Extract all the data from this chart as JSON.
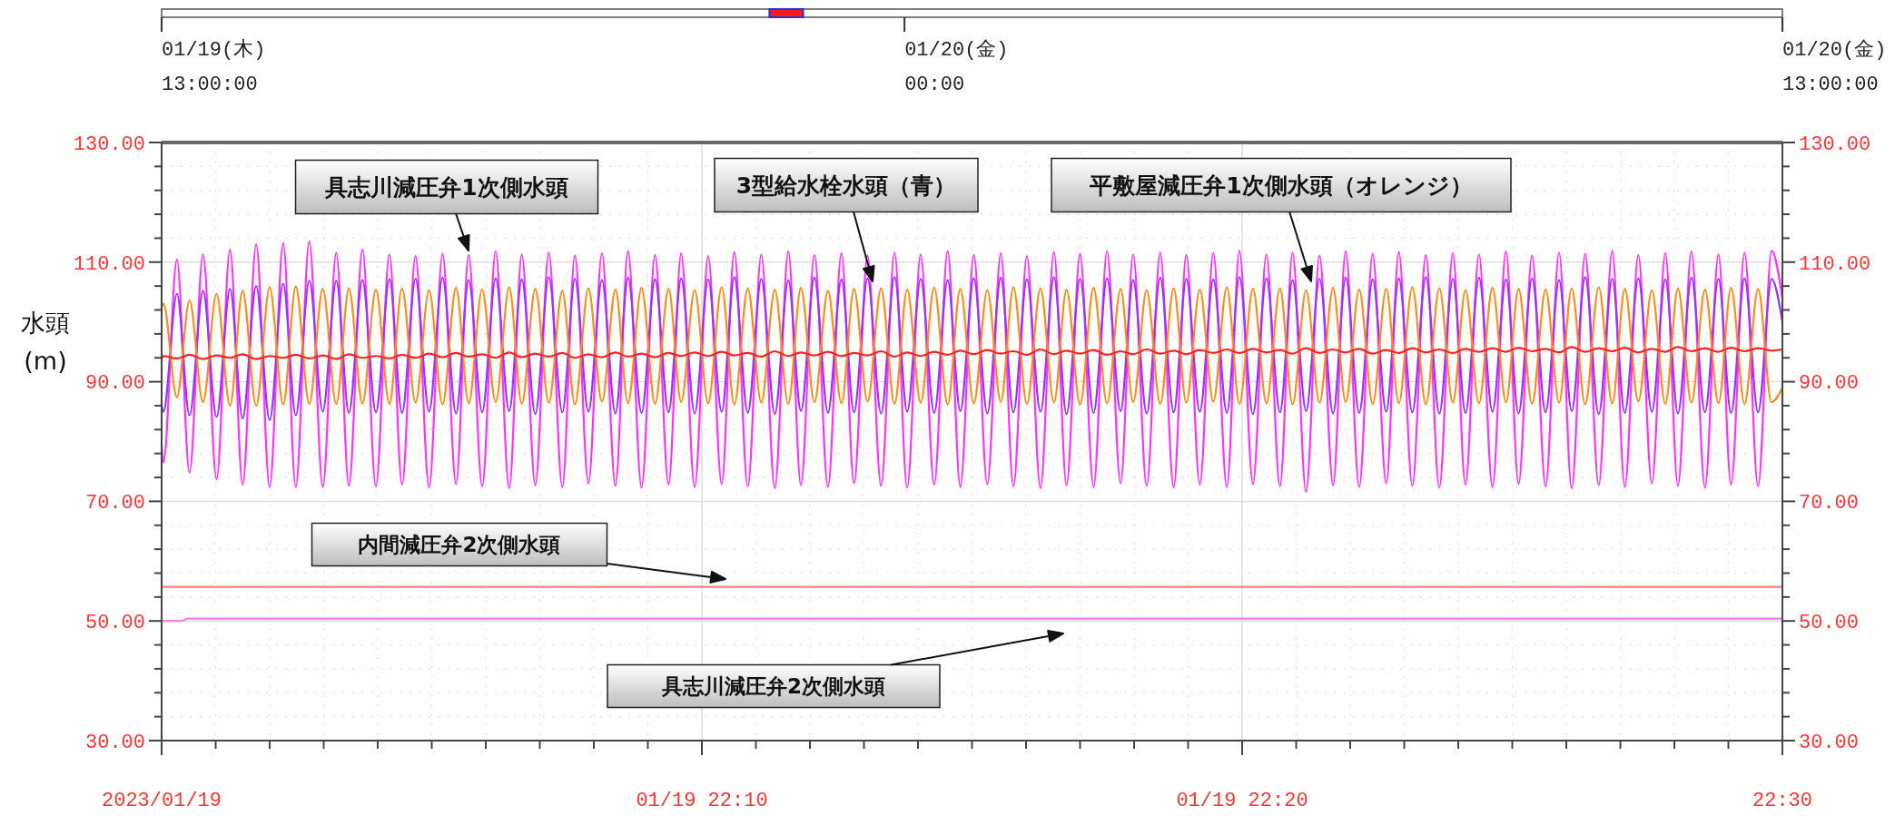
{
  "chart_data": {
    "type": "line",
    "ylabel": "水頭\n(m)",
    "xlim": [
      "2023-01-19T22:00",
      "2023-01-19T22:30"
    ],
    "xticks": [
      {
        "value": "2023-01-19T22:00",
        "label": "2023/01/19"
      },
      {
        "value": "2023-01-19T22:01",
        "label": null
      },
      {
        "value": "2023-01-19T22:02",
        "label": null
      },
      {
        "value": "2023-01-19T22:03",
        "label": null
      },
      {
        "value": "2023-01-19T22:04",
        "label": null
      },
      {
        "value": "2023-01-19T22:05",
        "label": null
      },
      {
        "value": "2023-01-19T22:06",
        "label": null
      },
      {
        "value": "2023-01-19T22:07",
        "label": null
      },
      {
        "value": "2023-01-19T22:08",
        "label": null
      },
      {
        "value": "2023-01-19T22:09",
        "label": null
      },
      {
        "value": "2023-01-19T22:10",
        "label": "01/19 22:10"
      },
      {
        "value": "2023-01-19T22:11",
        "label": null
      },
      {
        "value": "2023-01-19T22:12",
        "label": null
      },
      {
        "value": "2023-01-19T22:13",
        "label": null
      },
      {
        "value": "2023-01-19T22:14",
        "label": null
      },
      {
        "value": "2023-01-19T22:15",
        "label": null
      },
      {
        "value": "2023-01-19T22:16",
        "label": null
      },
      {
        "value": "2023-01-19T22:17",
        "label": null
      },
      {
        "value": "2023-01-19T22:18",
        "label": null
      },
      {
        "value": "2023-01-19T22:19",
        "label": null
      },
      {
        "value": "2023-01-19T22:20",
        "label": "01/19 22:20"
      },
      {
        "value": "2023-01-19T22:21",
        "label": null
      },
      {
        "value": "2023-01-19T22:22",
        "label": null
      },
      {
        "value": "2023-01-19T22:23",
        "label": null
      },
      {
        "value": "2023-01-19T22:24",
        "label": null
      },
      {
        "value": "2023-01-19T22:25",
        "label": null
      },
      {
        "value": "2023-01-19T22:26",
        "label": null
      },
      {
        "value": "2023-01-19T22:27",
        "label": null
      },
      {
        "value": "2023-01-19T22:28",
        "label": null
      },
      {
        "value": "2023-01-19T22:29",
        "label": null
      },
      {
        "value": "2023-01-19T22:30",
        "label": "22:30"
      }
    ],
    "ylim": [
      30,
      130
    ],
    "yticks": [
      {
        "value": 30,
        "label": "30.00"
      },
      {
        "value": 34,
        "label": null
      },
      {
        "value": 38,
        "label": null
      },
      {
        "value": 42,
        "label": null
      },
      {
        "value": 46,
        "label": null
      },
      {
        "value": 50,
        "label": "50.00"
      },
      {
        "value": 54,
        "label": null
      },
      {
        "value": 58,
        "label": null
      },
      {
        "value": 62,
        "label": null
      },
      {
        "value": 66,
        "label": null
      },
      {
        "value": 70,
        "label": "70.00"
      },
      {
        "value": 74,
        "label": null
      },
      {
        "value": 78,
        "label": null
      },
      {
        "value": 82,
        "label": null
      },
      {
        "value": 86,
        "label": null
      },
      {
        "value": 90,
        "label": "90.00"
      },
      {
        "value": 94,
        "label": null
      },
      {
        "value": 98,
        "label": null
      },
      {
        "value": 102,
        "label": null
      },
      {
        "value": 106,
        "label": null
      },
      {
        "value": 110,
        "label": "110.00"
      },
      {
        "value": 114,
        "label": null
      },
      {
        "value": 118,
        "label": null
      },
      {
        "value": 122,
        "label": null
      },
      {
        "value": 126,
        "label": null
      },
      {
        "value": 130,
        "label": "130.00"
      }
    ],
    "y2lim": [
      30,
      130
    ],
    "y2ticks": [
      {
        "value": 30,
        "label": "30.00"
      },
      {
        "value": 34,
        "label": null
      },
      {
        "value": 38,
        "label": null
      },
      {
        "value": 42,
        "label": null
      },
      {
        "value": 46,
        "label": null
      },
      {
        "value": 50,
        "label": "50.00"
      },
      {
        "value": 54,
        "label": null
      },
      {
        "value": 58,
        "label": null
      },
      {
        "value": 62,
        "label": null
      },
      {
        "value": 66,
        "label": null
      },
      {
        "value": 70,
        "label": "70.00"
      },
      {
        "value": 74,
        "label": null
      },
      {
        "value": 78,
        "label": null
      },
      {
        "value": 82,
        "label": null
      },
      {
        "value": 86,
        "label": null
      },
      {
        "value": 90,
        "label": "90.00"
      },
      {
        "value": 94,
        "label": null
      },
      {
        "value": 98,
        "label": null
      },
      {
        "value": 102,
        "label": null
      },
      {
        "value": 106,
        "label": null
      },
      {
        "value": 110,
        "label": "110.00"
      },
      {
        "value": 114,
        "label": null
      },
      {
        "value": 118,
        "label": null
      },
      {
        "value": 122,
        "label": null
      },
      {
        "value": 126,
        "label": null
      },
      {
        "value": 130,
        "label": "130.00"
      }
    ],
    "x2lim": [
      "2023-01-19T13:00",
      "2023-01-20T13:00"
    ],
    "x2ticks": [
      {
        "value": "2023-01-19T13:00",
        "label": "01/19(木)\n13:00:00"
      },
      {
        "value": "2023-01-20T00:00",
        "label": "01/20(金)\n00:00"
      },
      {
        "value": "2023-01-20T13:00",
        "label": "01/20(金)\n13:00:00"
      }
    ],
    "grid": true,
    "line_style": "solid",
    "x": [
      "2023-01-19T22:00:00",
      "2023-01-19T22:00:02",
      "2023-01-19T22:00:17",
      "2023-01-19T22:00:31",
      "2023-01-19T22:00:46",
      "2023-01-19T22:01:01",
      "2023-01-19T22:01:16",
      "2023-01-19T22:01:30",
      "2023-01-19T22:01:45",
      "2023-01-19T22:02:00",
      "2023-01-19T22:02:15",
      "2023-01-19T22:02:29",
      "2023-01-19T22:02:44",
      "2023-01-19T22:02:59",
      "2023-01-19T22:03:14",
      "2023-01-19T22:03:28",
      "2023-01-19T22:03:43",
      "2023-01-19T22:03:58",
      "2023-01-19T22:04:13",
      "2023-01-19T22:04:27",
      "2023-01-19T22:04:42",
      "2023-01-19T22:04:57",
      "2023-01-19T22:05:12",
      "2023-01-19T22:05:27",
      "2023-01-19T22:05:41",
      "2023-01-19T22:05:56",
      "2023-01-19T22:06:11",
      "2023-01-19T22:06:26",
      "2023-01-19T22:06:40",
      "2023-01-19T22:06:55",
      "2023-01-19T22:07:10",
      "2023-01-19T22:07:25",
      "2023-01-19T22:07:39",
      "2023-01-19T22:07:54",
      "2023-01-19T22:08:09",
      "2023-01-19T22:08:24",
      "2023-01-19T22:08:38",
      "2023-01-19T22:08:53",
      "2023-01-19T22:09:08",
      "2023-01-19T22:09:23",
      "2023-01-19T22:09:37",
      "2023-01-19T22:09:52",
      "2023-01-19T22:10:07",
      "2023-01-19T22:10:22",
      "2023-01-19T22:10:36",
      "2023-01-19T22:10:51",
      "2023-01-19T22:11:06",
      "2023-01-19T22:11:21",
      "2023-01-19T22:11:36",
      "2023-01-19T22:11:50",
      "2023-01-19T22:12:05",
      "2023-01-19T22:12:20",
      "2023-01-19T22:12:35",
      "2023-01-19T22:12:49",
      "2023-01-19T22:13:04",
      "2023-01-19T22:13:19",
      "2023-01-19T22:13:34",
      "2023-01-19T22:13:48",
      "2023-01-19T22:14:03",
      "2023-01-19T22:14:18",
      "2023-01-19T22:14:33",
      "2023-01-19T22:14:47",
      "2023-01-19T22:15:02",
      "2023-01-19T22:15:17",
      "2023-01-19T22:15:32",
      "2023-01-19T22:15:46",
      "2023-01-19T22:16:01",
      "2023-01-19T22:16:16",
      "2023-01-19T22:16:31",
      "2023-01-19T22:16:45",
      "2023-01-19T22:17:00",
      "2023-01-19T22:17:15",
      "2023-01-19T22:17:30",
      "2023-01-19T22:17:45",
      "2023-01-19T22:17:59",
      "2023-01-19T22:18:14",
      "2023-01-19T22:18:29",
      "2023-01-19T22:18:44",
      "2023-01-19T22:18:58",
      "2023-01-19T22:19:13",
      "2023-01-19T22:19:28",
      "2023-01-19T22:19:43",
      "2023-01-19T22:19:57",
      "2023-01-19T22:20:12",
      "2023-01-19T22:20:27",
      "2023-01-19T22:20:42",
      "2023-01-19T22:20:56",
      "2023-01-19T22:21:11",
      "2023-01-19T22:21:26",
      "2023-01-19T22:21:41",
      "2023-01-19T22:21:55",
      "2023-01-19T22:22:10",
      "2023-01-19T22:22:25",
      "2023-01-19T22:22:40",
      "2023-01-19T22:22:54",
      "2023-01-19T22:23:09",
      "2023-01-19T22:23:24",
      "2023-01-19T22:23:39",
      "2023-01-19T22:23:54",
      "2023-01-19T22:24:08",
      "2023-01-19T22:24:23",
      "2023-01-19T22:24:38",
      "2023-01-19T22:24:53",
      "2023-01-19T22:25:07",
      "2023-01-19T22:25:22",
      "2023-01-19T22:25:37",
      "2023-01-19T22:25:52",
      "2023-01-19T22:26:06",
      "2023-01-19T22:26:21",
      "2023-01-19T22:26:36",
      "2023-01-19T22:26:51",
      "2023-01-19T22:27:05",
      "2023-01-19T22:27:20",
      "2023-01-19T22:27:35",
      "2023-01-19T22:27:50",
      "2023-01-19T22:28:04",
      "2023-01-19T22:28:19",
      "2023-01-19T22:28:34",
      "2023-01-19T22:28:49",
      "2023-01-19T22:29:03",
      "2023-01-19T22:29:18",
      "2023-01-19T22:29:33",
      "2023-01-19T22:29:48",
      "2023-01-19T22:30:00"
    ],
    "series": [
      {
        "color": "#ff33ff",
        "values": [
          79.5,
          76.5,
          110.4,
          74.8,
          111.3,
          73.7,
          112.1,
          72.8,
          113.0,
          72.4,
          113.2,
          72.4,
          113.5,
          72.4,
          111.6,
          72.6,
          112.1,
          72.5,
          111.3,
          72.8,
          111.0,
          72.3,
          111.4,
          72.9,
          111.2,
          72.5,
          111.8,
          72.2,
          111.3,
          72.7,
          111.6,
          72.4,
          111.1,
          73.0,
          111.5,
          72.6,
          111.9,
          72.3,
          111.2,
          72.8,
          111.5,
          72.4,
          111.0,
          72.9,
          111.7,
          72.5,
          111.3,
          72.2,
          111.8,
          72.7,
          111.2,
          72.4,
          111.5,
          73.0,
          111.1,
          72.6,
          111.6,
          72.3,
          111.3,
          72.8,
          111.9,
          72.4,
          111.2,
          72.9,
          111.5,
          72.5,
          111.0,
          72.2,
          111.7,
          72.7,
          111.4,
          72.4,
          111.8,
          73.0,
          111.3,
          72.6,
          111.6,
          72.3,
          111.2,
          72.8,
          111.5,
          72.4,
          111.9,
          72.9,
          111.3,
          72.5,
          111.6,
          71.6,
          111.1,
          72.7,
          111.8,
          72.4,
          111.4,
          73.0,
          111.7,
          72.6,
          111.2,
          72.3,
          111.5,
          72.8,
          111.3,
          72.4,
          111.8,
          72.9,
          111.1,
          72.5,
          111.6,
          72.2,
          111.4,
          72.7,
          111.9,
          72.4,
          111.2,
          73.0,
          111.5,
          72.6,
          111.8,
          72.3,
          111.3,
          72.8,
          111.6,
          72.5,
          111.9,
          104.0
        ]
      },
      {
        "color": "#9933ff",
        "values": [
          86.0,
          85.0,
          104.7,
          84.4,
          105.2,
          84.1,
          105.5,
          83.9,
          106.0,
          83.6,
          106.4,
          84.4,
          106.9,
          85.0,
          106.9,
          84.8,
          107.0,
          84.9,
          107.1,
          84.8,
          107.2,
          85.0,
          107.4,
          84.7,
          107.0,
          84.9,
          107.3,
          85.1,
          107.1,
          84.6,
          107.5,
          84.9,
          107.2,
          85.0,
          107.0,
          84.7,
          107.4,
          84.8,
          107.1,
          84.9,
          107.3,
          84.7,
          107.1,
          85.0,
          107.5,
          84.8,
          107.2,
          84.6,
          107.0,
          85.1,
          107.4,
          84.8,
          107.1,
          84.9,
          107.3,
          84.7,
          107.5,
          85.0,
          107.2,
          84.8,
          107.0,
          85.1,
          107.3,
          84.7,
          107.4,
          84.9,
          107.1,
          85.0,
          107.5,
          84.6,
          107.2,
          84.8,
          107.3,
          85.1,
          107.0,
          84.7,
          107.4,
          84.9,
          107.2,
          85.0,
          107.1,
          84.8,
          107.5,
          84.6,
          107.3,
          84.9,
          107.0,
          85.1,
          107.2,
          84.7,
          107.4,
          84.8,
          107.1,
          85.0,
          107.3,
          84.9,
          107.5,
          84.7,
          107.2,
          84.8,
          107.4,
          85.0,
          107.1,
          84.7,
          107.3,
          84.9,
          107.0,
          85.1,
          107.5,
          84.6,
          107.2,
          84.8,
          107.3,
          85.0,
          107.1,
          84.7,
          107.4,
          84.9,
          107.2,
          84.8,
          107.3,
          84.9,
          107.2,
          100.0
        ]
      },
      {
        "color": "#ff8c1a",
        "values": [
          102.5,
          103.0,
          87.4,
          103.6,
          86.6,
          104.7,
          86.0,
          105.2,
          86.0,
          105.8,
          86.2,
          105.9,
          86.3,
          105.5,
          86.3,
          105.6,
          86.4,
          105.4,
          86.3,
          105.6,
          86.5,
          105.3,
          86.2,
          105.7,
          86.4,
          105.4,
          86.6,
          105.8,
          86.3,
          105.5,
          86.5,
          105.2,
          86.2,
          105.6,
          86.7,
          105.4,
          86.4,
          105.7,
          86.3,
          105.5,
          86.6,
          105.3,
          86.4,
          105.8,
          86.2,
          105.6,
          86.5,
          105.4,
          86.3,
          105.7,
          86.6,
          105.2,
          86.4,
          105.5,
          86.7,
          105.6,
          86.3,
          105.4,
          86.5,
          105.7,
          86.2,
          105.5,
          86.4,
          105.3,
          86.6,
          105.8,
          86.3,
          105.6,
          86.5,
          105.4,
          86.2,
          105.7,
          86.4,
          105.5,
          86.6,
          105.3,
          86.3,
          105.6,
          86.5,
          105.4,
          86.7,
          105.8,
          86.3,
          105.5,
          86.4,
          105.6,
          86.2,
          105.3,
          86.5,
          105.7,
          86.6,
          105.4,
          86.3,
          105.5,
          86.4,
          105.8,
          86.2,
          105.6,
          86.5,
          105.3,
          86.4,
          105.7,
          86.6,
          105.5,
          86.3,
          105.4,
          86.5,
          105.6,
          86.2,
          105.8,
          86.4,
          105.5,
          86.7,
          105.3,
          86.3,
          105.6,
          86.5,
          105.4,
          86.4,
          105.7,
          86.3,
          105.5,
          86.6,
          89.0
        ]
      },
      {
        "color": "#ff2222",
        "values": [
          93.8,
          94.3,
          93.9,
          94.5,
          93.8,
          94.4,
          94.0,
          94.6,
          93.8,
          94.3,
          94.0,
          94.5,
          93.9,
          94.4,
          93.8,
          94.6,
          94.0,
          94.3,
          93.9,
          94.5,
          94.0,
          94.7,
          94.1,
          94.8,
          94.2,
          94.6,
          94.0,
          94.9,
          94.1,
          94.7,
          94.2,
          94.8,
          94.0,
          94.6,
          94.1,
          94.9,
          94.2,
          94.7,
          94.1,
          94.8,
          94.3,
          94.9,
          94.3,
          95.0,
          94.4,
          94.8,
          94.2,
          95.1,
          94.3,
          94.9,
          94.4,
          95.0,
          94.3,
          94.8,
          94.4,
          95.1,
          94.2,
          94.9,
          94.3,
          95.0,
          94.5,
          95.2,
          94.6,
          95.3,
          94.7,
          95.1,
          94.5,
          95.4,
          94.6,
          95.2,
          94.7,
          95.3,
          94.5,
          95.1,
          94.6,
          95.4,
          94.7,
          95.2,
          94.6,
          95.3,
          94.8,
          95.4,
          94.8,
          95.5,
          94.9,
          95.3,
          94.7,
          95.6,
          94.8,
          95.4,
          94.9,
          95.5,
          94.7,
          95.3,
          94.8,
          95.6,
          94.9,
          95.4,
          94.8,
          95.5,
          95.0,
          95.6,
          95.0,
          95.7,
          95.1,
          95.5,
          94.9,
          95.8,
          95.0,
          95.6,
          95.1,
          95.7,
          94.9,
          95.5,
          95.0,
          95.8,
          95.1,
          95.6,
          95.0,
          95.7,
          95.1,
          95.6,
          95.2,
          95.4
        ]
      },
      {
        "color": "#ff8080",
        "x": [
          "2023-01-19T22:00:00",
          "2023-01-19T22:30:00"
        ],
        "values": [
          55.7,
          55.7
        ]
      },
      {
        "color": "#f07cf0",
        "x": [
          "2023-01-19T22:00:00",
          "2023-01-19T22:00:22",
          "2023-01-19T22:00:29",
          "2023-01-19T22:30:00"
        ],
        "values": [
          50.0,
          50.0,
          50.4,
          50.4
        ]
      }
    ],
    "annotations": [
      "具志川減圧弁1次側水頭",
      "3型給水栓水頭（青）",
      "平敷屋減圧弁1次側水頭（オレンジ）",
      "内間減圧弁2次側水頭",
      "具志川減圧弁2次側水頭"
    ]
  }
}
